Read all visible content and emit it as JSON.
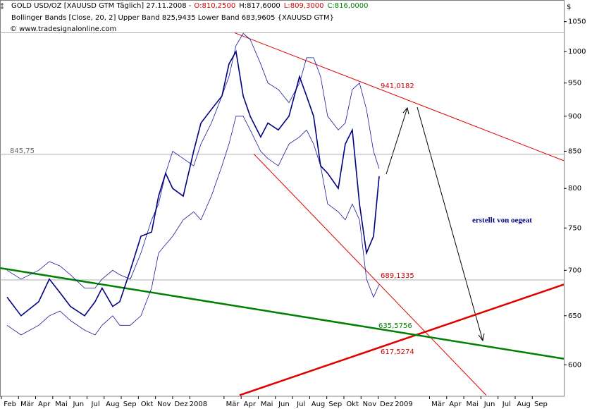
{
  "chart_data": {
    "type": "line",
    "header": {
      "title": "GOLD USD/OZ [XAUUSD GTM  Täglich] 27.11.2008 -",
      "open": "O:810,2500",
      "high": "H:817,6000",
      "low": "L:809,3000",
      "close": "C:816,0000"
    },
    "subtitle": "Bollinger Bands [Close, 20, 2] Upper Band 825,9435 Lower Band 683,9605 {XAUUSD GTM}",
    "copyright": "© www.tradesignalonline.com",
    "y_axis_label": "$",
    "log_scale": true,
    "xlim": [
      0.92,
      33.84
    ],
    "ylim": [
      570,
      1063
    ],
    "yticks": [
      600,
      650,
      700,
      750,
      800,
      850,
      900,
      950,
      1000,
      1050
    ],
    "xticks": [
      {
        "value": 1,
        "label": "Feb"
      },
      {
        "value": 2,
        "label": "Mär"
      },
      {
        "value": 3,
        "label": "Apr"
      },
      {
        "value": 4,
        "label": "Mai"
      },
      {
        "value": 5,
        "label": "Jun"
      },
      {
        "value": 6,
        "label": "Jul"
      },
      {
        "value": 7,
        "label": "Aug"
      },
      {
        "value": 8,
        "label": "Sep"
      },
      {
        "value": 9,
        "label": "Okt"
      },
      {
        "value": 10,
        "label": "Nov"
      },
      {
        "value": 11,
        "label": "Dez"
      },
      {
        "value": 12,
        "label": "2008"
      },
      {
        "value": 14,
        "label": "Mär"
      },
      {
        "value": 15,
        "label": "Apr"
      },
      {
        "value": 16,
        "label": "Mai"
      },
      {
        "value": 17,
        "label": "Jun"
      },
      {
        "value": 18,
        "label": "Jul"
      },
      {
        "value": 19,
        "label": "Aug"
      },
      {
        "value": 20,
        "label": "Sep"
      },
      {
        "value": 21,
        "label": "Okt"
      },
      {
        "value": 22,
        "label": "Nov"
      },
      {
        "value": 23,
        "label": "Dez"
      },
      {
        "value": 24,
        "label": "2009"
      },
      {
        "value": 26,
        "label": "Mär"
      },
      {
        "value": 27,
        "label": "Apr"
      },
      {
        "value": 28,
        "label": "Mai"
      },
      {
        "value": 29,
        "label": "Jun"
      },
      {
        "value": 30,
        "label": "Jul"
      },
      {
        "value": 31,
        "label": "Aug"
      },
      {
        "value": 32,
        "label": "Sep"
      }
    ],
    "x": [
      1.33,
      2.15,
      3.18,
      3.8,
      4.42,
      5.03,
      5.86,
      6.47,
      6.88,
      7.5,
      7.91,
      8.53,
      9.15,
      9.77,
      10.18,
      10.59,
      11.0,
      11.62,
      12.23,
      12.65,
      13.26,
      13.88,
      14.29,
      14.7,
      15.12,
      15.53,
      16.14,
      16.56,
      17.17,
      17.79,
      18.41,
      18.82,
      19.23,
      19.64,
      20.05,
      20.67,
      21.08,
      21.49,
      21.91,
      22.32,
      22.73,
      23.06
    ],
    "series": [
      {
        "color": "#000080",
        "width": 1.6,
        "values": [
          670,
          650,
          665,
          690,
          675,
          660,
          650,
          665,
          680,
          660,
          665,
          700,
          740,
          745,
          790,
          820,
          800,
          790,
          850,
          890,
          910,
          930,
          980,
          1000,
          930,
          900,
          870,
          890,
          880,
          900,
          960,
          930,
          900,
          830,
          820,
          800,
          860,
          880,
          780,
          720,
          740,
          816
        ]
      },
      {
        "color": "#1a1a9a",
        "width": 0.8,
        "values": [
          700,
          690,
          700,
          710,
          705,
          695,
          680,
          680,
          690,
          700,
          695,
          690,
          720,
          760,
          780,
          820,
          850,
          840,
          830,
          860,
          890,
          930,
          960,
          1010,
          1030,
          1020,
          980,
          950,
          940,
          920,
          950,
          990,
          990,
          960,
          900,
          880,
          890,
          940,
          950,
          910,
          850,
          826
        ]
      },
      {
        "color": "#1a1a9a",
        "width": 0.8,
        "values": [
          640,
          630,
          640,
          650,
          655,
          645,
          635,
          630,
          640,
          650,
          640,
          640,
          650,
          680,
          720,
          730,
          740,
          760,
          770,
          760,
          790,
          830,
          860,
          900,
          900,
          880,
          850,
          840,
          830,
          860,
          870,
          880,
          860,
          830,
          780,
          770,
          760,
          780,
          760,
          690,
          670,
          684
        ]
      }
    ],
    "hlines": [
      {
        "value": 845.75,
        "label": "845,75"
      },
      {
        "value": 689.1335
      },
      {
        "value": 1031
      }
    ],
    "lines": [
      {
        "color": "#e00000",
        "width": 1,
        "points": [
          [
            14.62,
            1031
          ],
          [
            33.84,
            837
          ]
        ]
      },
      {
        "color": "#e00000",
        "width": 1,
        "points": [
          [
            15.73,
            846.5
          ],
          [
            29.31,
            571
          ]
        ]
      },
      {
        "color": "#e00000",
        "width": 2.5,
        "points": [
          [
            14.91,
            571
          ],
          [
            33.84,
            684
          ]
        ]
      },
      {
        "color": "#008000",
        "width": 2.5,
        "points": [
          [
            0.92,
            702.6
          ],
          [
            33.84,
            606
          ]
        ]
      }
    ],
    "annotations": [
      {
        "text": "941,0182",
        "color": "#cc0000"
      },
      {
        "text": "689,1335",
        "color": "#cc0000"
      },
      {
        "text": "635,5756",
        "color": "#008000"
      },
      {
        "text": "617,5274",
        "color": "#cc0000"
      },
      {
        "text": "erstellt von oegeat",
        "color": "#000080"
      }
    ]
  }
}
